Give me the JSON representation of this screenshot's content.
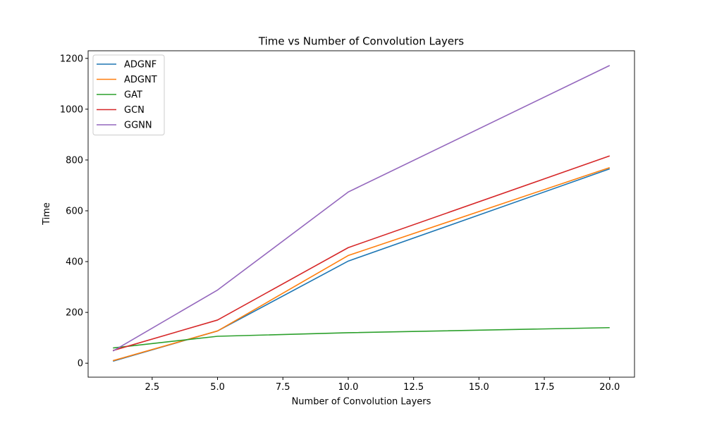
{
  "chart_data": {
    "type": "line",
    "title": "Time vs Number of Convolution Layers",
    "xlabel": "Number of Convolution Layers",
    "ylabel": "Time",
    "xlim": [
      0.05,
      20.95
    ],
    "ylim": [
      -55,
      1230
    ],
    "x": [
      1,
      5,
      10,
      20
    ],
    "xticks": [
      2.5,
      5.0,
      7.5,
      10.0,
      12.5,
      15.0,
      17.5,
      20.0
    ],
    "xtick_labels": [
      "2.5",
      "5.0",
      "7.5",
      "10.0",
      "12.5",
      "15.0",
      "17.5",
      "20.0"
    ],
    "yticks": [
      0,
      200,
      400,
      600,
      800,
      1000,
      1200
    ],
    "ytick_labels": [
      "0",
      "200",
      "400",
      "600",
      "800",
      "1000",
      "1200"
    ],
    "grid": false,
    "legend_position": "upper-left",
    "series": [
      {
        "name": "ADGNF",
        "color": "#1f77b4",
        "values": [
          8,
          127,
          402,
          765
        ]
      },
      {
        "name": "ADGNT",
        "color": "#ff7f0e",
        "values": [
          10,
          127,
          424,
          770
        ]
      },
      {
        "name": "GAT",
        "color": "#2ca02c",
        "values": [
          60,
          106,
          120,
          140
        ]
      },
      {
        "name": "GCN",
        "color": "#d62728",
        "values": [
          50,
          170,
          455,
          816
        ]
      },
      {
        "name": "GGNN",
        "color": "#9467bd",
        "values": [
          48,
          288,
          674,
          1172
        ]
      }
    ]
  }
}
